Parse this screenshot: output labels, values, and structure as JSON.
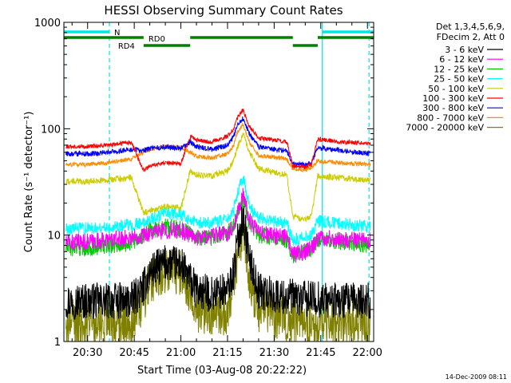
{
  "chart_data": {
    "type": "line",
    "title": "HESSI Observing Summary Count Rates",
    "xlabel": "Start Time (03-Aug-08 20:22:22)",
    "ylabel": "Count Rate (s⁻¹ detector⁻¹)",
    "xlim": [
      "20:22:22",
      "22:02:00"
    ],
    "ylim": [
      1,
      1000
    ],
    "yscale": "log",
    "x_ticks": [
      "20:30",
      "20:45",
      "21:00",
      "21:15",
      "21:30",
      "21:45",
      "22:00"
    ],
    "y_ticks": [
      "1",
      "10",
      "100",
      "1000"
    ],
    "legend": {
      "placement": "right",
      "header": [
        "Det 1,3,4,5,6,9,",
        "FDecim 2, Att 0"
      ]
    },
    "flags": [
      {
        "label": "N",
        "color": "#00e5e5",
        "segments": [
          [
            "20:22:22",
            "20:37:00"
          ],
          [
            "21:45:30",
            "22:02:00"
          ]
        ]
      },
      {
        "label": "RD0",
        "color": "#008000",
        "segments": [
          [
            "20:22:22",
            "20:48:00"
          ],
          [
            "21:03:00",
            "21:36:00"
          ],
          [
            "21:44:00",
            "22:02:00"
          ]
        ]
      },
      {
        "label": "RD4",
        "color": "#008000",
        "segments": [
          [
            "20:48:00",
            "21:03:00"
          ],
          [
            "21:36:00",
            "21:44:00"
          ]
        ]
      }
    ],
    "night_boundaries": [
      "20:22:22",
      "20:37:00",
      "21:45:30",
      "22:00:30"
    ],
    "x": [
      "20:23",
      "20:30",
      "20:37",
      "20:44",
      "20:48",
      "20:50",
      "20:55",
      "21:00",
      "21:03",
      "21:05",
      "21:10",
      "21:15",
      "21:17",
      "21:18",
      "21:20",
      "21:22",
      "21:25",
      "21:30",
      "21:34",
      "21:36",
      "21:40",
      "21:42",
      "21:44",
      "21:50",
      "21:55",
      "22:01"
    ],
    "series": [
      {
        "name": "3 - 6 keV",
        "color": "#000000",
        "values": [
          2.4,
          2.4,
          2.4,
          2.4,
          3.2,
          4.5,
          5.5,
          5.3,
          3.8,
          3.0,
          2.8,
          3.0,
          4.5,
          8.0,
          15,
          6.0,
          3.0,
          2.7,
          2.6,
          2.6,
          2.5,
          2.5,
          2.5,
          2.4,
          2.4,
          2.4
        ]
      },
      {
        "name": "6 - 12 keV",
        "color": "#ff00ff",
        "values": [
          8.5,
          8.6,
          9.0,
          9.5,
          10,
          10.5,
          11,
          11,
          10,
          9.5,
          9.8,
          10.5,
          12,
          16,
          24,
          14,
          10.5,
          10,
          9.5,
          6.5,
          7,
          7.5,
          9.5,
          9.2,
          9.0,
          8.8
        ]
      },
      {
        "name": "12 - 25 keV",
        "color": "#00cc00",
        "values": [
          7.5,
          7.6,
          8.0,
          8.5,
          10,
          11,
          12,
          11.5,
          10.5,
          9.5,
          9.5,
          10.5,
          12,
          15,
          22,
          13,
          10,
          9.5,
          9.0,
          6.5,
          7,
          7.5,
          9.0,
          8.8,
          8.5,
          8.0
        ]
      },
      {
        "name": "25 - 50 keV",
        "color": "#00ffff",
        "values": [
          11.5,
          11.6,
          12.0,
          12.5,
          13,
          14,
          16,
          15.5,
          14,
          13,
          13,
          14,
          17,
          24,
          35,
          19,
          14.5,
          13.5,
          13,
          9.0,
          9.5,
          10,
          13.5,
          13.0,
          12.5,
          12.0
        ]
      },
      {
        "name": "50 - 100 keV",
        "color": "#cccc00",
        "values": [
          32,
          32,
          33,
          35,
          16,
          17,
          18.5,
          18,
          40,
          37,
          36,
          40,
          50,
          65,
          90,
          60,
          42,
          39,
          37,
          15,
          14,
          15,
          36,
          35,
          34,
          33
        ]
      },
      {
        "name": "100 - 300 keV",
        "color": "#ff0000",
        "values": [
          68,
          68,
          70,
          75,
          40,
          45,
          48,
          47,
          85,
          78,
          75,
          85,
          100,
          125,
          150,
          105,
          82,
          78,
          76,
          45,
          44,
          46,
          80,
          76,
          74,
          72
        ]
      },
      {
        "name": "300 - 800 keV",
        "color": "#0000ff",
        "values": [
          58,
          58,
          60,
          64,
          62,
          65,
          67,
          66,
          75,
          68,
          64,
          70,
          85,
          105,
          125,
          90,
          68,
          64,
          62,
          47,
          46,
          48,
          66,
          63,
          61,
          58
        ]
      },
      {
        "name": "800 - 7000 keV",
        "color": "#ff8c00",
        "values": [
          46,
          46,
          48,
          52,
          60,
          64,
          68,
          67,
          60,
          55,
          53,
          58,
          70,
          90,
          110,
          75,
          56,
          54,
          52,
          42,
          41,
          43,
          50,
          48,
          47,
          46
        ]
      },
      {
        "name": "7000 - 20000 keV",
        "color": "#808000",
        "values": [
          1.5,
          1.5,
          1.5,
          1.6,
          2.5,
          3.6,
          4.8,
          4.5,
          3.0,
          2.0,
          1.8,
          1.9,
          3.0,
          6.0,
          12,
          4.0,
          2.0,
          1.7,
          1.6,
          1.5,
          1.5,
          1.5,
          1.5,
          1.5,
          1.5,
          1.5
        ]
      }
    ]
  },
  "footer": {
    "timestamp": "14-Dec-2009 08:11"
  }
}
